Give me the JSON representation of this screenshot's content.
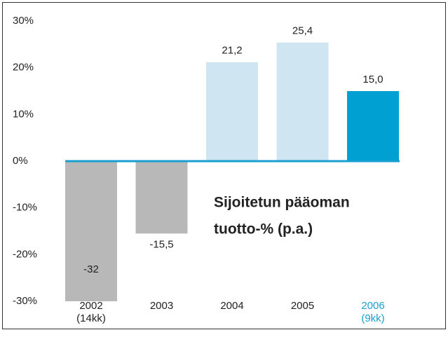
{
  "chart_data": {
    "type": "bar",
    "title": [
      "Sijoitetun pääoman",
      "tuotto-% (p.a.)"
    ],
    "categories": [
      "2002",
      "2003",
      "2004",
      "2005",
      "2006"
    ],
    "category_notes": [
      "(14kk)",
      null,
      null,
      null,
      "(9kk)"
    ],
    "category_colors": [
      "#222222",
      "#222222",
      "#222222",
      "#222222",
      "#1a9fd0"
    ],
    "values": [
      -32,
      -15.5,
      21.2,
      25.4,
      15.0
    ],
    "value_labels": [
      "-32",
      "-15,5",
      "21,2",
      "25,4",
      "15,0"
    ],
    "colors": [
      "#b8b8b8",
      "#b8b8b8",
      "#cfe5f2",
      "#cfe5f2",
      "#00a0d2"
    ],
    "ylim": [
      -30,
      30
    ],
    "yticks": [
      {
        "value": -30,
        "label": "-30%"
      },
      {
        "value": -20,
        "label": "-20%"
      },
      {
        "value": -10,
        "label": "-10%"
      },
      {
        "value": 0,
        "label": "0%"
      },
      {
        "value": 10,
        "label": "10%"
      },
      {
        "value": 20,
        "label": "20%"
      },
      {
        "value": 30,
        "label": "30%"
      }
    ],
    "zero_line_color": "#1a9fd0"
  }
}
